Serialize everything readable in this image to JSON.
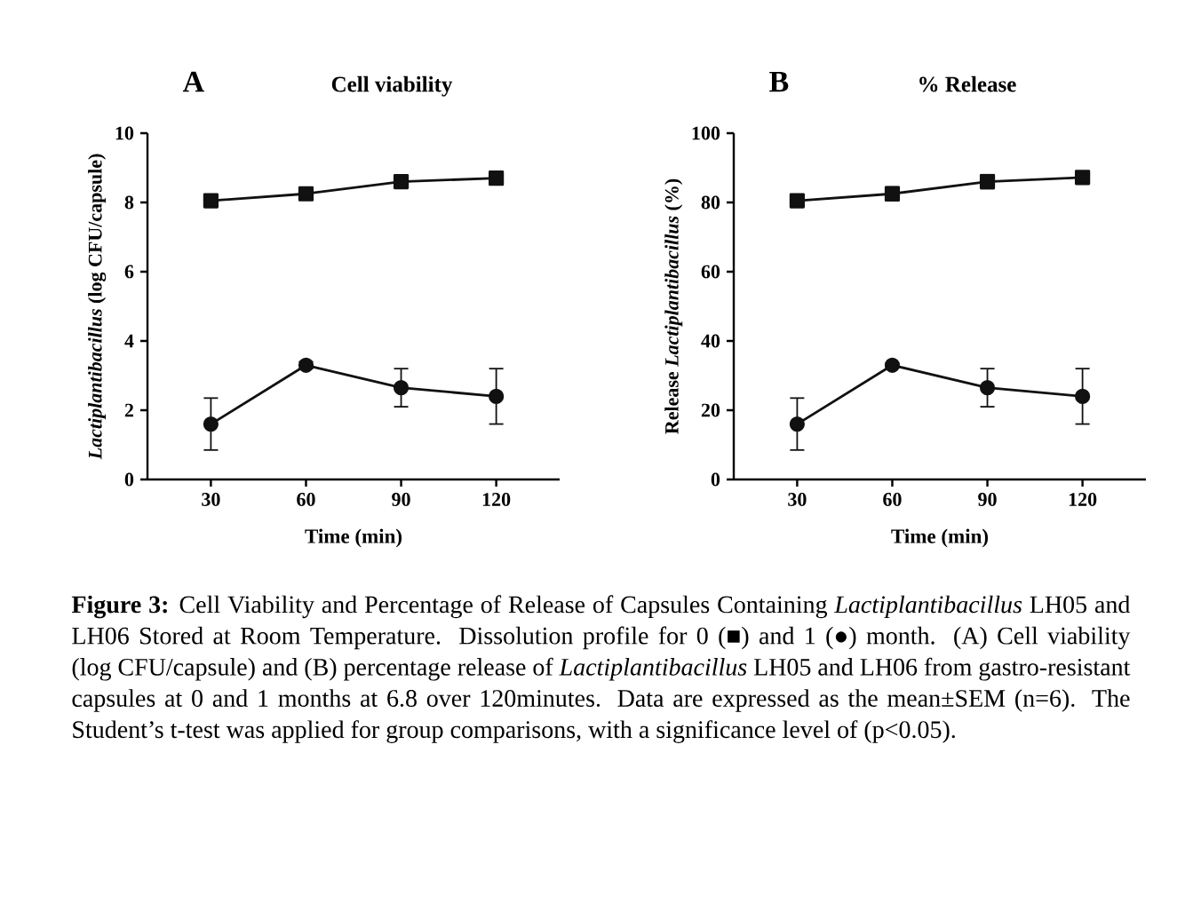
{
  "chart_data": [
    {
      "type": "line",
      "title": "A",
      "subtitle": "Cell viability",
      "xlabel": "Time (min)",
      "ylabel": "*Lactiplantibacillus* (log CFU/capsule)",
      "x": [
        30,
        60,
        90,
        120
      ],
      "xlim": [
        10,
        140
      ],
      "xticks": [
        30,
        60,
        90,
        120
      ],
      "ylim": [
        0,
        10
      ],
      "yticks": [
        0,
        2,
        4,
        6,
        8,
        10
      ],
      "series": [
        {
          "color": "#111111",
          "marker": "square",
          "values": [
            8.05,
            8.25,
            8.6,
            8.7
          ],
          "errors": [
            0.1,
            0.15,
            0.15,
            0.1
          ]
        },
        {
          "color": "#111111",
          "marker": "circle",
          "values": [
            1.6,
            3.3,
            2.65,
            2.4
          ],
          "errors": [
            0.75,
            0.1,
            0.55,
            0.8
          ]
        }
      ],
      "annotations": [
        "**Figure 3:** Cell Viability and Percentage of Release of Capsules Containing *Lactiplantibacillus* LH05 and LH06 Stored at Room Temperature. Dissolution profile for 0 (■) and 1 (●) month. (A) Cell viability (log CFU/capsule) and (B) percentage release of *Lactiplantibacillus* LH05 and LH06 from gastro-resistant capsules at 0 and 1 months at 6.8 over 120minutes. Data are expressed as the mean±SEM (n=6). The Student’s t-test was applied for group comparisons, with a significance level of (p<0.05)."
      ]
    },
    {
      "type": "line",
      "title": "B",
      "subtitle": "% Release",
      "xlabel": "Time (min)",
      "ylabel": "Release *Lactiplantibacillus* (%)",
      "x": [
        30,
        60,
        90,
        120
      ],
      "xlim": [
        10,
        140
      ],
      "xticks": [
        30,
        60,
        90,
        120
      ],
      "ylim": [
        0,
        100
      ],
      "yticks": [
        0,
        20,
        40,
        60,
        80,
        100
      ],
      "series": [
        {
          "color": "#111111",
          "marker": "square",
          "values": [
            80.5,
            82.5,
            86,
            87.2
          ],
          "errors": [
            1.5,
            2,
            2,
            1
          ]
        },
        {
          "color": "#111111",
          "marker": "circle",
          "values": [
            16,
            33,
            26.5,
            24
          ],
          "errors": [
            7.5,
            0.5,
            5.5,
            8
          ]
        }
      ]
    }
  ]
}
